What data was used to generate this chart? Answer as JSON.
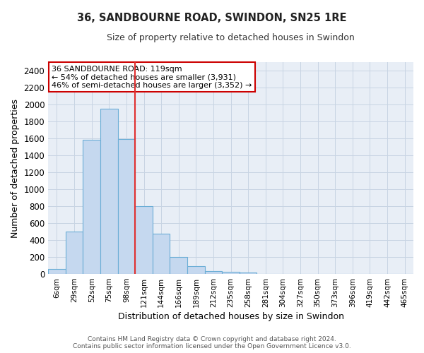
{
  "title": "36, SANDBOURNE ROAD, SWINDON, SN25 1RE",
  "subtitle": "Size of property relative to detached houses in Swindon",
  "xlabel": "Distribution of detached houses by size in Swindon",
  "ylabel": "Number of detached properties",
  "bar_color": "#c5d8ef",
  "bar_edge_color": "#6baed6",
  "grid_color": "#c8d4e3",
  "background_color": "#e8eef6",
  "categories": [
    "6sqm",
    "29sqm",
    "52sqm",
    "75sqm",
    "98sqm",
    "121sqm",
    "144sqm",
    "166sqm",
    "189sqm",
    "212sqm",
    "235sqm",
    "258sqm",
    "281sqm",
    "304sqm",
    "327sqm",
    "350sqm",
    "373sqm",
    "396sqm",
    "419sqm",
    "442sqm",
    "465sqm"
  ],
  "values": [
    60,
    500,
    1580,
    1950,
    1590,
    800,
    475,
    200,
    90,
    35,
    25,
    20,
    0,
    0,
    0,
    0,
    0,
    0,
    0,
    0,
    0
  ],
  "ylim": [
    0,
    2500
  ],
  "yticks": [
    0,
    200,
    400,
    600,
    800,
    1000,
    1200,
    1400,
    1600,
    1800,
    2000,
    2200,
    2400
  ],
  "annotation_line1": "36 SANDBOURNE ROAD: 119sqm",
  "annotation_line2": "← 54% of detached houses are smaller (3,931)",
  "annotation_line3": "46% of semi-detached houses are larger (3,352) →",
  "annotation_box_color": "#ffffff",
  "annotation_border_color": "#cc0000",
  "highlight_bar_index": 4,
  "highlight_bar_color": "#e03030",
  "footer_line1": "Contains HM Land Registry data © Crown copyright and database right 2024.",
  "footer_line2": "Contains public sector information licensed under the Open Government Licence v3.0."
}
